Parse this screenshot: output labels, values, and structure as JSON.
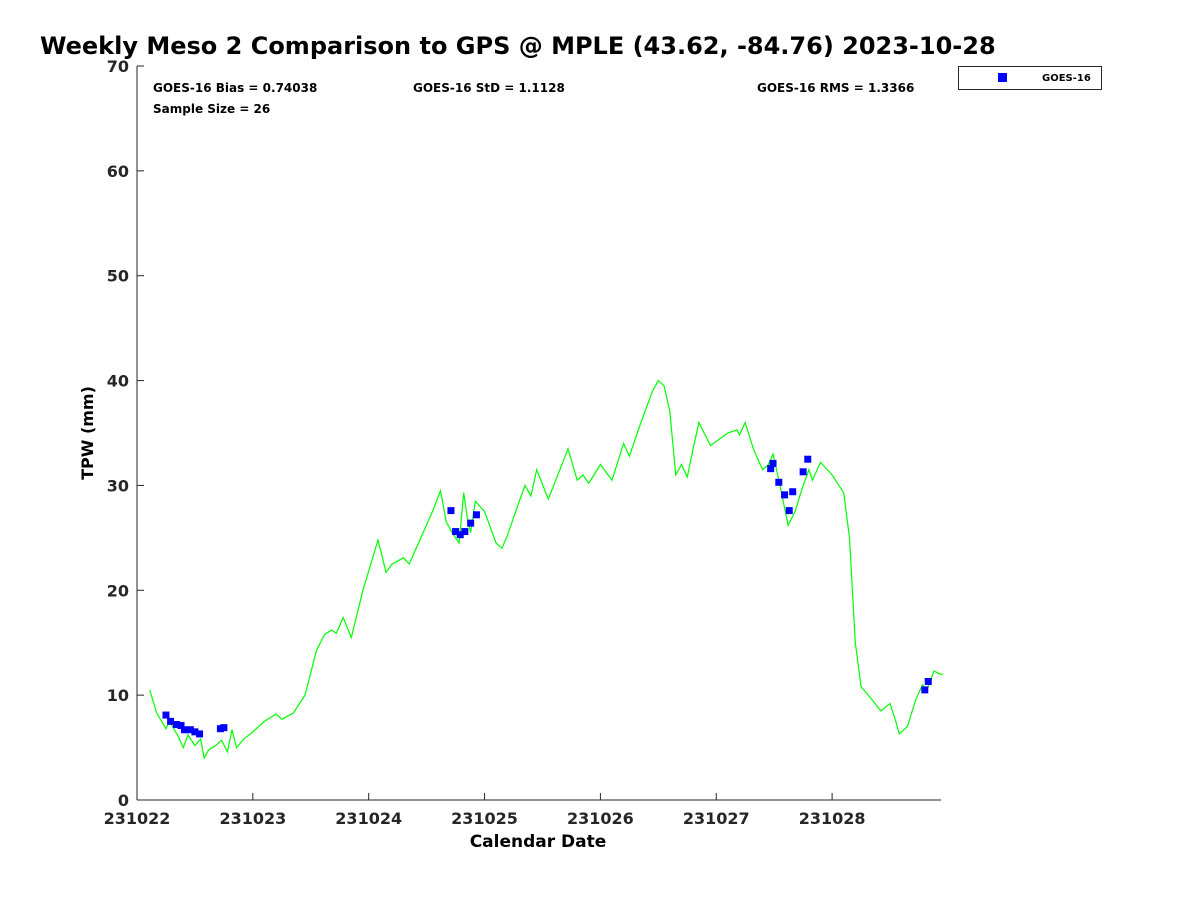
{
  "chart_data": {
    "type": "scatter",
    "title": "Weekly Meso 2 Comparison to GPS @ MPLE (43.62, -84.76) 2023-10-28",
    "xlabel": "Calendar Date",
    "ylabel": "TPW (mm)",
    "xlim": [
      22.0,
      28.94
    ],
    "ylim": [
      0,
      70
    ],
    "x_ticks": [
      22,
      23,
      24,
      25,
      26,
      27,
      28
    ],
    "x_tick_labels": [
      "231022",
      "231023",
      "231024",
      "231025",
      "231026",
      "231027",
      "231028"
    ],
    "y_ticks": [
      0,
      10,
      20,
      30,
      40,
      50,
      60,
      70
    ],
    "y_tick_labels": [
      "0",
      "10",
      "20",
      "30",
      "40",
      "50",
      "60",
      "70"
    ],
    "grid": false,
    "legend": {
      "placement": "top-right outside",
      "entries": [
        "GOES-16"
      ]
    },
    "stats": {
      "bias": "GOES-16 Bias = 0.74038",
      "std": "GOES-16 StD = 1.1128",
      "rms": "GOES-16 RMS = 1.3366",
      "sample": "Sample Size = 26"
    },
    "series": [
      {
        "name": "GOES-16",
        "kind": "scatter",
        "color": "#0000ff",
        "x": [
          22.25,
          22.29,
          22.34,
          22.38,
          22.41,
          22.46,
          22.5,
          22.54,
          22.72,
          22.75,
          24.71,
          24.75,
          24.79,
          24.83,
          24.88,
          24.93,
          27.47,
          27.49,
          27.54,
          27.59,
          27.63,
          27.66,
          27.75,
          27.79,
          28.8,
          28.83
        ],
        "y": [
          8.1,
          7.5,
          7.2,
          7.1,
          6.7,
          6.7,
          6.5,
          6.3,
          6.8,
          6.9,
          27.6,
          25.6,
          25.3,
          25.6,
          26.4,
          27.2,
          31.6,
          32.1,
          30.3,
          29.1,
          27.6,
          29.4,
          31.3,
          32.5,
          10.5,
          11.3
        ]
      },
      {
        "name": "GPS",
        "kind": "line",
        "color": "#00ff00",
        "x": [
          22.11,
          22.17,
          22.25,
          22.28,
          22.35,
          22.4,
          22.44,
          22.5,
          22.55,
          22.58,
          22.62,
          22.68,
          22.73,
          22.78,
          22.82,
          22.86,
          22.92,
          23.0,
          23.1,
          23.2,
          23.25,
          23.35,
          23.45,
          23.55,
          23.62,
          23.68,
          23.72,
          23.78,
          23.85,
          23.95,
          24.08,
          24.15,
          24.2,
          24.3,
          24.35,
          24.45,
          24.55,
          24.62,
          24.67,
          24.72,
          24.78,
          24.82,
          24.85,
          24.88,
          24.92,
          25.0,
          25.1,
          25.15,
          25.2,
          25.3,
          25.35,
          25.4,
          25.45,
          25.55,
          25.65,
          25.72,
          25.8,
          25.85,
          25.9,
          26.0,
          26.1,
          26.2,
          26.25,
          26.35,
          26.45,
          26.5,
          26.55,
          26.6,
          26.65,
          26.7,
          26.75,
          26.8,
          26.85,
          26.95,
          27.1,
          27.18,
          27.2,
          27.25,
          27.32,
          27.4,
          27.45,
          27.49,
          27.55,
          27.62,
          27.68,
          27.75,
          27.8,
          27.83,
          27.9,
          28.0,
          28.1,
          28.15,
          28.2,
          28.25,
          28.35,
          28.42,
          28.5,
          28.55,
          28.58,
          28.65,
          28.72,
          28.78,
          28.82,
          28.88,
          28.93,
          28.96
        ],
        "y": [
          10.5,
          8.3,
          6.8,
          7.5,
          6.2,
          5.0,
          6.2,
          5.2,
          5.8,
          4.0,
          4.8,
          5.2,
          5.7,
          4.6,
          6.7,
          5.0,
          5.8,
          6.5,
          7.5,
          8.2,
          7.7,
          8.3,
          10.0,
          14.3,
          15.8,
          16.2,
          15.9,
          17.4,
          15.5,
          20.0,
          24.8,
          21.7,
          22.5,
          23.1,
          22.5,
          25.0,
          27.5,
          29.5,
          26.5,
          25.5,
          24.5,
          29.3,
          27.0,
          25.5,
          28.5,
          27.5,
          24.5,
          24.0,
          25.3,
          28.5,
          30.0,
          29.0,
          31.5,
          28.7,
          31.5,
          33.5,
          30.5,
          31.0,
          30.2,
          32.0,
          30.5,
          34.0,
          32.8,
          36.0,
          39.0,
          40.0,
          39.5,
          37.0,
          31.0,
          32.0,
          30.8,
          33.5,
          36.0,
          33.8,
          35.0,
          35.3,
          34.8,
          36.0,
          33.5,
          31.5,
          32.0,
          33.0,
          30.0,
          26.2,
          27.5,
          30.0,
          31.5,
          30.5,
          32.2,
          31.0,
          29.3,
          25.0,
          15.0,
          10.8,
          9.5,
          8.5,
          9.2,
          7.5,
          6.3,
          7.0,
          9.5,
          11.0,
          10.5,
          12.3,
          12.0,
          12.0
        ]
      }
    ]
  }
}
